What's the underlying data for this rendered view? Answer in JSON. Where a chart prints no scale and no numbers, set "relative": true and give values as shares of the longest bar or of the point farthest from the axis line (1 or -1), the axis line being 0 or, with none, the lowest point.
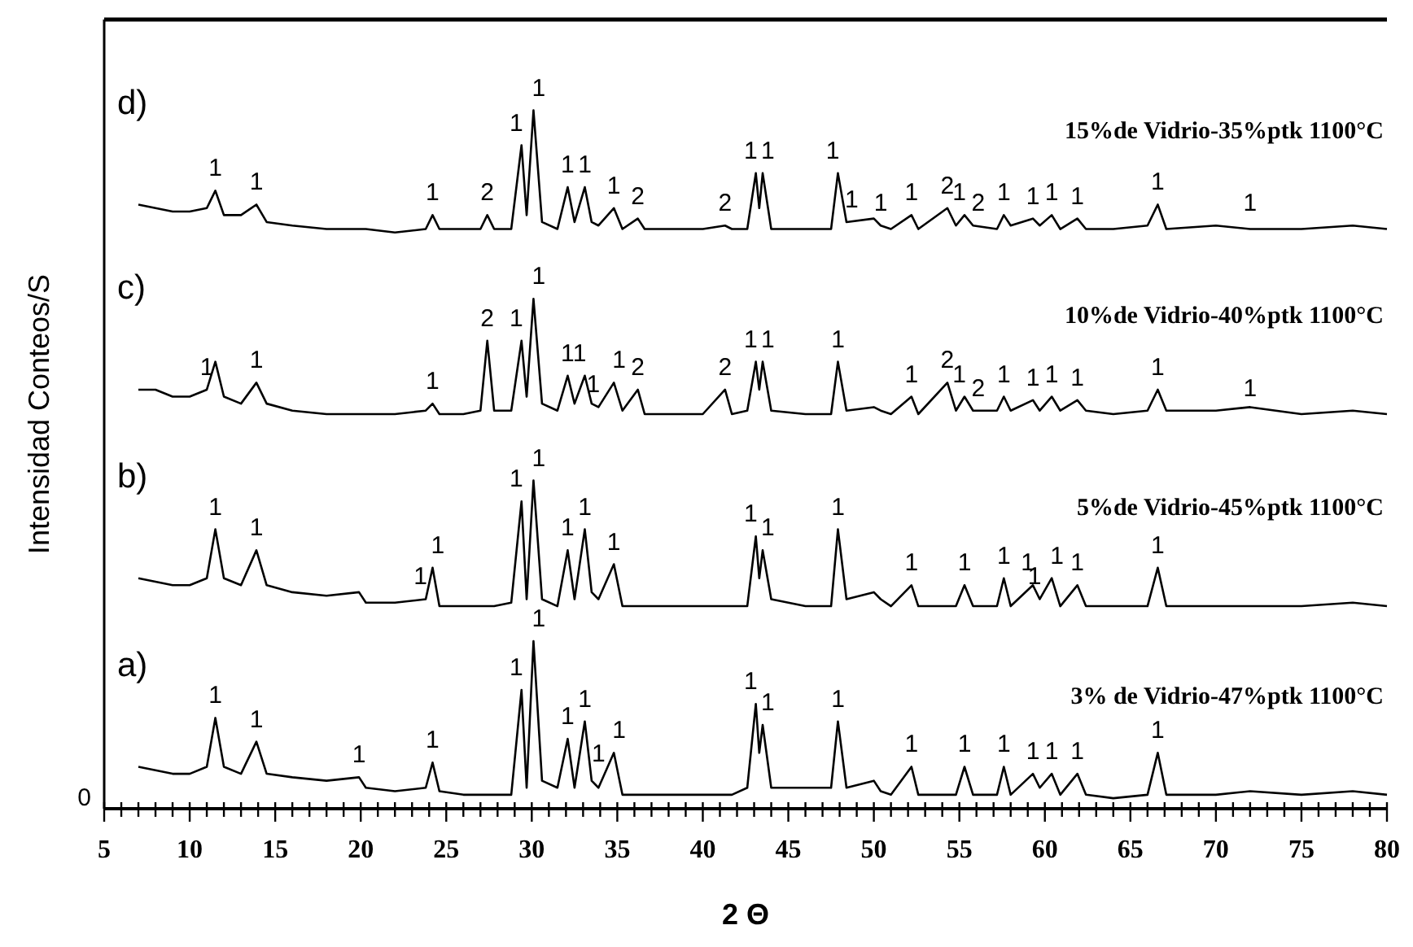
{
  "chart_data": {
    "type": "line",
    "xlabel": "2 Θ",
    "ylabel": "Intensidad Conteos/S",
    "relative": true,
    "grid": false,
    "marker": "none",
    "line_style": "solid",
    "xlim": [
      5,
      80
    ],
    "xticks": [
      5,
      {
        "value": 6,
        "label": null
      },
      {
        "value": 7,
        "label": null
      },
      {
        "value": 8,
        "label": null
      },
      {
        "value": 9,
        "label": null
      },
      10,
      {
        "value": 11,
        "label": null
      },
      {
        "value": 12,
        "label": null
      },
      {
        "value": 13,
        "label": null
      },
      {
        "value": 14,
        "label": null
      },
      15,
      {
        "value": 16,
        "label": null
      },
      {
        "value": 17,
        "label": null
      },
      {
        "value": 18,
        "label": null
      },
      {
        "value": 19,
        "label": null
      },
      20,
      {
        "value": 21,
        "label": null
      },
      {
        "value": 22,
        "label": null
      },
      {
        "value": 23,
        "label": null
      },
      {
        "value": 24,
        "label": null
      },
      25,
      {
        "value": 26,
        "label": null
      },
      {
        "value": 27,
        "label": null
      },
      {
        "value": 28,
        "label": null
      },
      {
        "value": 29,
        "label": null
      },
      30,
      {
        "value": 31,
        "label": null
      },
      {
        "value": 32,
        "label": null
      },
      {
        "value": 33,
        "label": null
      },
      {
        "value": 34,
        "label": null
      },
      35,
      {
        "value": 36,
        "label": null
      },
      {
        "value": 37,
        "label": null
      },
      {
        "value": 38,
        "label": null
      },
      {
        "value": 39,
        "label": null
      },
      40,
      {
        "value": 41,
        "label": null
      },
      {
        "value": 42,
        "label": null
      },
      {
        "value": 43,
        "label": null
      },
      {
        "value": 44,
        "label": null
      },
      45,
      {
        "value": 46,
        "label": null
      },
      {
        "value": 47,
        "label": null
      },
      {
        "value": 48,
        "label": null
      },
      {
        "value": 49,
        "label": null
      },
      50,
      {
        "value": 51,
        "label": null
      },
      {
        "value": 52,
        "label": null
      },
      {
        "value": 53,
        "label": null
      },
      {
        "value": 54,
        "label": null
      },
      55,
      {
        "value": 56,
        "label": null
      },
      {
        "value": 57,
        "label": null
      },
      {
        "value": 58,
        "label": null
      },
      {
        "value": 59,
        "label": null
      },
      60,
      {
        "value": 61,
        "label": null
      },
      {
        "value": 62,
        "label": null
      },
      {
        "value": 63,
        "label": null
      },
      {
        "value": 64,
        "label": null
      },
      65,
      {
        "value": 66,
        "label": null
      },
      {
        "value": 67,
        "label": null
      },
      {
        "value": 68,
        "label": null
      },
      {
        "value": 69,
        "label": null
      },
      70,
      {
        "value": 71,
        "label": null
      },
      {
        "value": 72,
        "label": null
      },
      {
        "value": 73,
        "label": null
      },
      {
        "value": 74,
        "label": null
      },
      75,
      {
        "value": 76,
        "label": null
      },
      {
        "value": 77,
        "label": null
      },
      {
        "value": 78,
        "label": null
      },
      {
        "value": 79,
        "label": null
      },
      80
    ],
    "x": [
      7,
      8,
      9,
      10,
      11,
      11.5,
      12,
      13,
      13.9,
      14.5,
      16,
      18,
      19.9,
      20.3,
      22,
      23.8,
      24.2,
      24.6,
      26,
      27,
      27.4,
      27.8,
      28.8,
      29.4,
      29.7,
      30.1,
      30.6,
      31.5,
      32.1,
      32.5,
      33.1,
      33.5,
      33.9,
      34.8,
      35.3,
      36.2,
      36.6,
      40,
      41.3,
      41.7,
      42.6,
      43.1,
      43.3,
      43.5,
      44,
      46,
      47.5,
      47.9,
      48.4,
      50,
      50.4,
      51,
      52.2,
      52.6,
      54.3,
      54.8,
      55.3,
      55.8,
      57.2,
      57.6,
      58,
      59.3,
      59.7,
      60.4,
      60.9,
      61.9,
      62.4,
      64,
      66,
      66.6,
      67.1,
      70,
      72,
      75,
      78,
      80
    ],
    "series": [
      {
        "name": "3% de Vidrio-47%ptk 1100°C",
        "color": "#000000",
        "values": [
          0.06,
          0.055,
          0.05,
          0.05,
          0.06,
          0.13,
          0.06,
          0.05,
          0.096,
          0.05,
          0.045,
          0.04,
          0.045,
          0.03,
          0.025,
          0.03,
          0.066,
          0.025,
          0.02,
          0.02,
          0.02,
          0.02,
          0.02,
          0.17,
          0.03,
          0.24,
          0.04,
          0.03,
          0.1,
          0.03,
          0.125,
          0.04,
          0.03,
          0.08,
          0.02,
          0.02,
          0.02,
          0.02,
          0.02,
          0.02,
          0.03,
          0.15,
          0.08,
          0.12,
          0.03,
          0.03,
          0.03,
          0.125,
          0.03,
          0.04,
          0.025,
          0.02,
          0.06,
          0.02,
          0.02,
          0.02,
          0.06,
          0.02,
          0.02,
          0.06,
          0.02,
          0.05,
          0.03,
          0.05,
          0.02,
          0.05,
          0.02,
          0.015,
          0.02,
          0.08,
          0.02,
          0.02,
          0.025,
          0.02,
          0.025,
          0.02
        ]
      },
      {
        "name": "5%de Vidrio-45%ptk 1100°C",
        "color": "#000000",
        "values": [
          0.33,
          0.325,
          0.32,
          0.32,
          0.33,
          0.4,
          0.33,
          0.32,
          0.37,
          0.32,
          0.31,
          0.305,
          0.31,
          0.295,
          0.295,
          0.3,
          0.345,
          0.29,
          0.29,
          0.29,
          0.29,
          0.29,
          0.295,
          0.44,
          0.3,
          0.47,
          0.3,
          0.29,
          0.37,
          0.3,
          0.4,
          0.31,
          0.3,
          0.35,
          0.29,
          0.29,
          0.29,
          0.29,
          0.29,
          0.29,
          0.29,
          0.39,
          0.33,
          0.37,
          0.3,
          0.29,
          0.29,
          0.4,
          0.3,
          0.31,
          0.3,
          0.29,
          0.32,
          0.29,
          0.29,
          0.29,
          0.32,
          0.29,
          0.29,
          0.33,
          0.29,
          0.32,
          0.3,
          0.33,
          0.29,
          0.32,
          0.29,
          0.29,
          0.29,
          0.345,
          0.29,
          0.29,
          0.29,
          0.29,
          0.295,
          0.29
        ]
      },
      {
        "name": "10%de Vidrio-40%ptk 1100°C",
        "color": "#000000",
        "values": [
          0.6,
          0.6,
          0.59,
          0.59,
          0.6,
          0.64,
          0.59,
          0.58,
          0.61,
          0.58,
          0.57,
          0.565,
          0.565,
          0.565,
          0.565,
          0.57,
          0.58,
          0.565,
          0.565,
          0.57,
          0.67,
          0.57,
          0.57,
          0.67,
          0.59,
          0.73,
          0.58,
          0.57,
          0.62,
          0.58,
          0.62,
          0.58,
          0.575,
          0.61,
          0.57,
          0.6,
          0.565,
          0.565,
          0.6,
          0.565,
          0.57,
          0.64,
          0.6,
          0.64,
          0.57,
          0.565,
          0.565,
          0.64,
          0.57,
          0.575,
          0.57,
          0.565,
          0.59,
          0.565,
          0.61,
          0.57,
          0.59,
          0.57,
          0.57,
          0.59,
          0.57,
          0.585,
          0.57,
          0.59,
          0.57,
          0.585,
          0.57,
          0.565,
          0.57,
          0.6,
          0.57,
          0.57,
          0.575,
          0.565,
          0.57,
          0.565
        ]
      },
      {
        "name": "15%de Vidrio-35%ptk 1100°C",
        "color": "#000000",
        "values": [
          0.865,
          0.86,
          0.855,
          0.855,
          0.86,
          0.885,
          0.85,
          0.85,
          0.865,
          0.84,
          0.835,
          0.83,
          0.83,
          0.83,
          0.825,
          0.83,
          0.85,
          0.83,
          0.83,
          0.83,
          0.85,
          0.83,
          0.83,
          0.95,
          0.85,
          1.0,
          0.84,
          0.83,
          0.89,
          0.84,
          0.89,
          0.84,
          0.835,
          0.86,
          0.83,
          0.845,
          0.83,
          0.83,
          0.835,
          0.83,
          0.83,
          0.91,
          0.86,
          0.91,
          0.83,
          0.83,
          0.83,
          0.91,
          0.84,
          0.845,
          0.835,
          0.83,
          0.85,
          0.83,
          0.86,
          0.835,
          0.85,
          0.835,
          0.83,
          0.85,
          0.835,
          0.845,
          0.835,
          0.85,
          0.83,
          0.845,
          0.83,
          0.83,
          0.835,
          0.865,
          0.83,
          0.835,
          0.83,
          0.83,
          0.835,
          0.83
        ]
      }
    ],
    "annotations": [
      "0",
      "a)",
      "b)",
      "c)",
      "d)",
      {
        "text": "1",
        "x": 11.5,
        "y": 0.13
      },
      {
        "text": "1",
        "x": 13.9,
        "y": 0.096
      },
      {
        "text": "1",
        "x": 19.9,
        "y": 0.045
      },
      {
        "text": "1",
        "x": 24.2,
        "y": 0.066
      },
      {
        "text": "1",
        "x": 29.4,
        "y": 0.17
      },
      {
        "text": "1",
        "x": 30.1,
        "y": 0.24
      },
      {
        "text": "1",
        "x": 32.1,
        "y": 0.1
      },
      {
        "text": "1",
        "x": 33.1,
        "y": 0.125
      },
      {
        "text": "1",
        "x": 34.2,
        "y": 0.047
      },
      {
        "text": "1",
        "x": 34.8,
        "y": 0.08
      },
      {
        "text": "1",
        "x": 43.1,
        "y": 0.15
      },
      {
        "text": "1",
        "x": 43.5,
        "y": 0.12
      },
      {
        "text": "1",
        "x": 47.9,
        "y": 0.125
      },
      {
        "text": "1",
        "x": 52.2,
        "y": 0.06
      },
      {
        "text": "1",
        "x": 55.3,
        "y": 0.06
      },
      {
        "text": "1",
        "x": 57.6,
        "y": 0.06
      },
      {
        "text": "1",
        "x": 59.3,
        "y": 0.05
      },
      {
        "text": "1",
        "x": 60.4,
        "y": 0.05
      },
      {
        "text": "1",
        "x": 61.9,
        "y": 0.05
      },
      {
        "text": "1",
        "x": 66.6,
        "y": 0.08
      },
      {
        "text": "1",
        "x": 11.5,
        "y": 0.4
      },
      {
        "text": "1",
        "x": 13.9,
        "y": 0.37
      },
      {
        "text": "1",
        "x": 23.8,
        "y": 0.3
      },
      {
        "text": "1",
        "x": 24.2,
        "y": 0.345
      },
      {
        "text": "1",
        "x": 29.4,
        "y": 0.44
      },
      {
        "text": "1",
        "x": 30.1,
        "y": 0.47
      },
      {
        "text": "1",
        "x": 32.1,
        "y": 0.37
      },
      {
        "text": "1",
        "x": 33.1,
        "y": 0.4
      },
      {
        "text": "1",
        "x": 34.8,
        "y": 0.35
      },
      {
        "text": "1",
        "x": 43.1,
        "y": 0.39
      },
      {
        "text": "1",
        "x": 43.5,
        "y": 0.37
      },
      {
        "text": "1",
        "x": 47.9,
        "y": 0.4
      },
      {
        "text": "1",
        "x": 52.2,
        "y": 0.32
      },
      {
        "text": "1",
        "x": 55.3,
        "y": 0.32
      },
      {
        "text": "1",
        "x": 57.6,
        "y": 0.33
      },
      {
        "text": "1",
        "x": 59.3,
        "y": 0.32
      },
      {
        "text": "1",
        "x": 59.7,
        "y": 0.3
      },
      {
        "text": "1",
        "x": 60.4,
        "y": 0.33
      },
      {
        "text": "1",
        "x": 61.9,
        "y": 0.32
      },
      {
        "text": "1",
        "x": 66.6,
        "y": 0.345
      },
      {
        "text": "1",
        "x": 11,
        "y": 0.6
      },
      {
        "text": "1",
        "x": 13.9,
        "y": 0.61
      },
      {
        "text": "1",
        "x": 24.2,
        "y": 0.58
      },
      {
        "text": "2",
        "x": 27.4,
        "y": 0.67
      },
      {
        "text": "1",
        "x": 29.4,
        "y": 0.67
      },
      {
        "text": "1",
        "x": 30.1,
        "y": 0.73
      },
      {
        "text": "1",
        "x": 32.1,
        "y": 0.62
      },
      {
        "text": "1",
        "x": 33.1,
        "y": 0.62
      },
      {
        "text": "1",
        "x": 33.9,
        "y": 0.575
      },
      {
        "text": "1",
        "x": 34.8,
        "y": 0.61
      },
      {
        "text": "2",
        "x": 36.2,
        "y": 0.6
      },
      {
        "text": "2",
        "x": 41.3,
        "y": 0.6
      },
      {
        "text": "1",
        "x": 43.1,
        "y": 0.64
      },
      {
        "text": "1",
        "x": 43.5,
        "y": 0.64
      },
      {
        "text": "1",
        "x": 47.9,
        "y": 0.64
      },
      {
        "text": "1",
        "x": 52.2,
        "y": 0.59
      },
      {
        "text": "2",
        "x": 54.3,
        "y": 0.61
      },
      {
        "text": "1",
        "x": 55.3,
        "y": 0.59
      },
      {
        "text": "2",
        "x": 55.8,
        "y": 0.57
      },
      {
        "text": "1",
        "x": 57.6,
        "y": 0.59
      },
      {
        "text": "1",
        "x": 59.3,
        "y": 0.585
      },
      {
        "text": "1",
        "x": 60.4,
        "y": 0.59
      },
      {
        "text": "1",
        "x": 61.9,
        "y": 0.585
      },
      {
        "text": "1",
        "x": 66.6,
        "y": 0.6
      },
      {
        "text": "1",
        "x": 72,
        "y": 0.57
      },
      {
        "text": "1",
        "x": 11.5,
        "y": 0.885
      },
      {
        "text": "1",
        "x": 13.9,
        "y": 0.865
      },
      {
        "text": "1",
        "x": 24.2,
        "y": 0.85
      },
      {
        "text": "2",
        "x": 27.4,
        "y": 0.85
      },
      {
        "text": "1",
        "x": 29.4,
        "y": 0.95
      },
      {
        "text": "1",
        "x": 30.1,
        "y": 1.0
      },
      {
        "text": "1",
        "x": 32.1,
        "y": 0.89
      },
      {
        "text": "1",
        "x": 33.1,
        "y": 0.89
      },
      {
        "text": "1",
        "x": 34.8,
        "y": 0.86
      },
      {
        "text": "2",
        "x": 36.2,
        "y": 0.845
      },
      {
        "text": "2",
        "x": 41.3,
        "y": 0.835
      },
      {
        "text": "1",
        "x": 43.1,
        "y": 0.91
      },
      {
        "text": "1",
        "x": 43.5,
        "y": 0.91
      },
      {
        "text": "1",
        "x": 47.9,
        "y": 0.91
      },
      {
        "text": "1",
        "x": 48.4,
        "y": 0.84
      },
      {
        "text": "1",
        "x": 50.4,
        "y": 0.835
      },
      {
        "text": "1",
        "x": 52.2,
        "y": 0.85
      },
      {
        "text": "2",
        "x": 54.3,
        "y": 0.86
      },
      {
        "text": "1",
        "x": 55.3,
        "y": 0.85
      },
      {
        "text": "2",
        "x": 55.8,
        "y": 0.835
      },
      {
        "text": "1",
        "x": 57.6,
        "y": 0.85
      },
      {
        "text": "1",
        "x": 59.3,
        "y": 0.845
      },
      {
        "text": "1",
        "x": 60.4,
        "y": 0.85
      },
      {
        "text": "1",
        "x": 61.9,
        "y": 0.845
      },
      {
        "text": "1",
        "x": 66.6,
        "y": 0.865
      },
      {
        "text": "1",
        "x": 72,
        "y": 0.835
      }
    ]
  }
}
